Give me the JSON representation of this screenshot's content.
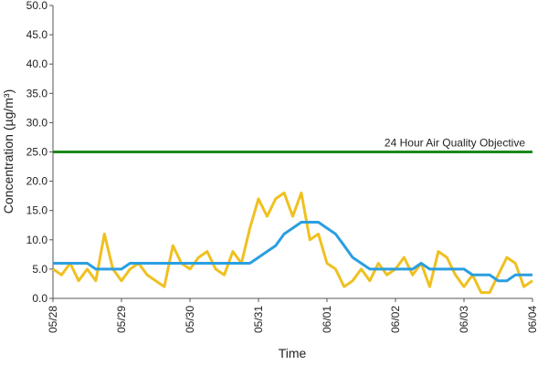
{
  "chart_data": {
    "type": "line",
    "xlabel": "Time",
    "ylabel": "Concentration (µg/m³)",
    "x": [
      0,
      0.125,
      0.25,
      0.375,
      0.5,
      0.625,
      0.75,
      0.875,
      1,
      1.125,
      1.25,
      1.375,
      1.5,
      1.625,
      1.75,
      1.875,
      2,
      2.125,
      2.25,
      2.375,
      2.5,
      2.625,
      2.75,
      2.875,
      3,
      3.125,
      3.25,
      3.375,
      3.5,
      3.625,
      3.75,
      3.875,
      4,
      4.125,
      4.25,
      4.375,
      4.5,
      4.625,
      4.75,
      4.875,
      5,
      5.125,
      5.25,
      5.375,
      5.5,
      5.625,
      5.75,
      5.875,
      6,
      6.125,
      6.25,
      6.375,
      6.5,
      6.625,
      6.75,
      6.875,
      7
    ],
    "series": [
      {
        "color": "#f0c020",
        "values": [
          5,
          4,
          6,
          3,
          5,
          3,
          11,
          5,
          3,
          5,
          6,
          4,
          3,
          2,
          9,
          6,
          5,
          7,
          8,
          5,
          4,
          8,
          6,
          12,
          17,
          14,
          17,
          18,
          14,
          18,
          10,
          11,
          6,
          5,
          2,
          3,
          5,
          3,
          6,
          4,
          5,
          7,
          4,
          6,
          2,
          8,
          7,
          4,
          2,
          4,
          1,
          1,
          4,
          7,
          6,
          2,
          3
        ]
      },
      {
        "color": "#2a9fe0",
        "values": [
          6,
          6,
          6,
          6,
          6,
          5,
          5,
          5,
          5,
          6,
          6,
          6,
          6,
          6,
          6,
          6,
          6,
          6,
          6,
          6,
          6,
          6,
          6,
          6,
          7,
          8,
          9,
          11,
          12,
          13,
          13,
          13,
          12,
          11,
          9,
          7,
          6,
          5,
          5,
          5,
          5,
          5,
          5,
          6,
          5,
          5,
          5,
          5,
          5,
          4,
          4,
          4,
          3,
          3,
          4,
          4,
          4
        ]
      }
    ],
    "objective": {
      "label": "24 Hour Air Quality Objective",
      "value": 25,
      "color": "#1a8a1a"
    },
    "xlim": [
      0,
      7
    ],
    "xticks": [
      {
        "value": 0,
        "label": "05/28"
      },
      {
        "value": 1,
        "label": "05/29"
      },
      {
        "value": 2,
        "label": "05/30"
      },
      {
        "value": 3,
        "label": "05/31"
      },
      {
        "value": 4,
        "label": "06/01"
      },
      {
        "value": 5,
        "label": "06/02"
      },
      {
        "value": 6,
        "label": "06/03"
      },
      {
        "value": 7,
        "label": "06/04"
      }
    ],
    "ylim": [
      0,
      50
    ],
    "yticks": [
      {
        "value": 0,
        "label": "0.0"
      },
      {
        "value": 5,
        "label": "5.0"
      },
      {
        "value": 10,
        "label": "10.0"
      },
      {
        "value": 15,
        "label": "15.0"
      },
      {
        "value": 20,
        "label": "20.0"
      },
      {
        "value": 25,
        "label": "25.0"
      },
      {
        "value": 30,
        "label": "30.0"
      },
      {
        "value": 35,
        "label": "35.0"
      },
      {
        "value": 40,
        "label": "40.0"
      },
      {
        "value": 45,
        "label": "45.0"
      },
      {
        "value": 50,
        "label": "50.0"
      }
    ]
  }
}
